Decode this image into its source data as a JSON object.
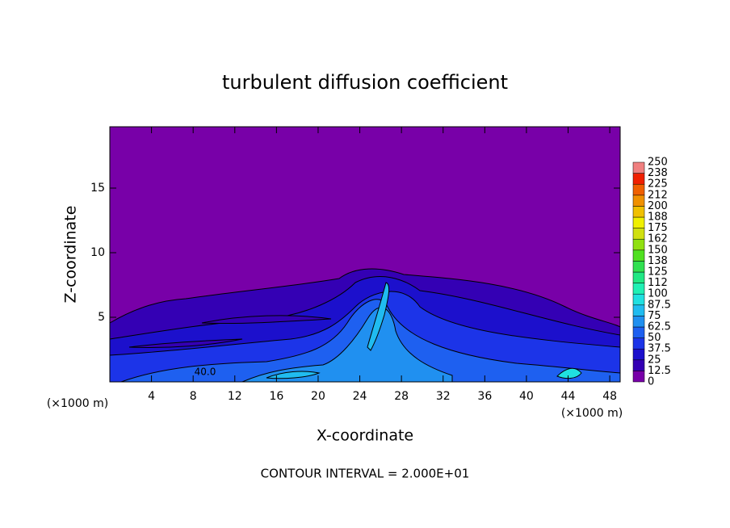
{
  "chart_data": {
    "type": "contour",
    "title": "turbulent diffusion coefficient",
    "xlabel": "X-coordinate",
    "ylabel": "Z-coordinate",
    "xunit": "(×1000 m)",
    "xunit2": "(×1000 m)",
    "footer": "CONTOUR INTERVAL = 2.000E+01",
    "contour_label": "40.0",
    "xlim": [
      0,
      49
    ],
    "ylim": [
      0,
      19.75
    ],
    "xticks": [
      4,
      8,
      12,
      16,
      20,
      24,
      28,
      32,
      36,
      40,
      44,
      48
    ],
    "yticks": [
      5,
      10,
      15
    ],
    "colorbar_ticks": [
      0,
      12.5,
      25,
      37.5,
      50,
      62.5,
      75,
      87.5,
      100,
      {
        "value": 112.5,
        "label": "112"
      },
      125,
      {
        "value": 137.5,
        "label": "138"
      },
      150,
      {
        "value": 162.5,
        "label": "162"
      },
      175,
      {
        "value": 187.5,
        "label": "188"
      },
      200,
      {
        "value": 212.5,
        "label": "212"
      },
      225,
      {
        "value": 237.5,
        "label": "238"
      },
      250
    ],
    "colors": [
      "#7800a8",
      "#3400b4",
      "#1c10cc",
      "#1c34e8",
      "#1e60f0",
      "#2090f0",
      "#20bcf0",
      "#20e0e0",
      "#20f0b4",
      "#20e884",
      "#30e050",
      "#50e020",
      "#90e010",
      "#d0e010",
      "#f0f000",
      "#f0c000",
      "#f09000",
      "#f06000",
      "#f02000",
      "#f08080"
    ]
  }
}
